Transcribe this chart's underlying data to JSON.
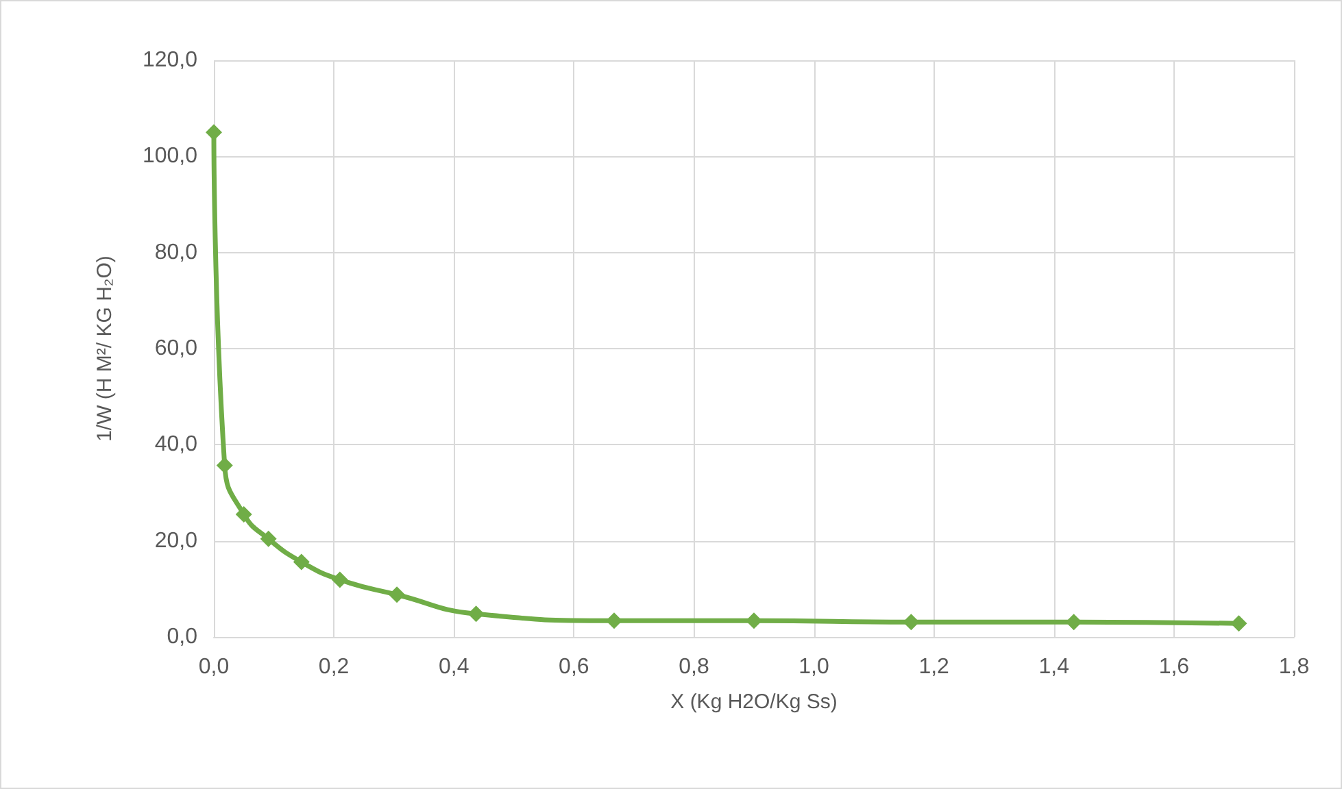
{
  "chart_data": {
    "type": "line",
    "xlabel": "X (Kg H2O/Kg Ss)",
    "ylabel": "1/W (H M²/ KG H₂O)",
    "x": [
      0.0,
      0.018,
      0.05,
      0.091,
      0.146,
      0.21,
      0.305,
      0.437,
      0.667,
      0.9,
      1.162,
      1.433,
      1.708
    ],
    "series": [
      {
        "color": "#70ad47",
        "values": [
          105,
          35.7,
          25.5,
          20.4,
          15.6,
          11.9,
          8.8,
          4.8,
          3.4,
          3.4,
          3.1,
          3.1,
          2.8
        ]
      }
    ],
    "xlim": [
      0,
      1.8
    ],
    "xticks": [
      {
        "value": 0,
        "label": "0,0"
      },
      {
        "value": 0.2,
        "label": "0,2"
      },
      {
        "value": 0.4,
        "label": "0,4"
      },
      {
        "value": 0.6,
        "label": "0,6"
      },
      {
        "value": 0.8,
        "label": "0,8"
      },
      {
        "value": 1.0,
        "label": "1,0"
      },
      {
        "value": 1.2,
        "label": "1,2"
      },
      {
        "value": 1.4,
        "label": "1,4"
      },
      {
        "value": 1.6,
        "label": "1,6"
      },
      {
        "value": 1.8,
        "label": "1,8"
      }
    ],
    "ylim": [
      0,
      120
    ],
    "yticks": [
      {
        "value": 0,
        "label": "0,0"
      },
      {
        "value": 20,
        "label": "20,0"
      },
      {
        "value": 40,
        "label": "40,0"
      },
      {
        "value": 60,
        "label": "60,0"
      },
      {
        "value": 80,
        "label": "80,0"
      },
      {
        "value": 100,
        "label": "100,0"
      },
      {
        "value": 120,
        "label": "120,0"
      }
    ],
    "grid": true,
    "marker": "diamond",
    "line_style": "solid"
  }
}
